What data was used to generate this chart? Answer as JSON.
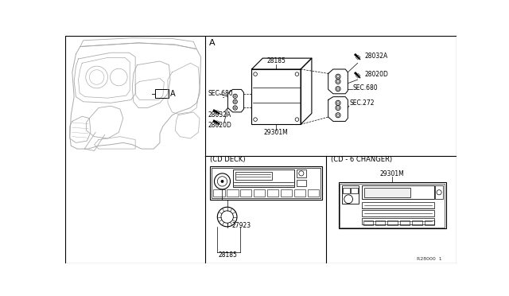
{
  "bg_color": "#ffffff",
  "line_color": "#000000",
  "gray_color": "#aaaaaa",
  "ref_code": "R28000  1",
  "fig_width": 6.4,
  "fig_height": 3.72,
  "dpi": 100,
  "labels": {
    "A_overview": "A",
    "A_callout": "A",
    "cd_deck": "(CD DECK)",
    "cd_changer": "(CD - 6 CHANGER)",
    "28185_top": "28185",
    "28032A_top": "28032A",
    "28020D_top": "28020D",
    "sec680_left": "SEC.680",
    "sec680_right": "SEC.680",
    "sec272": "SEC.272",
    "28032A_left": "28032A",
    "28020D_left": "28020D",
    "29301M_bottom": "29301M",
    "29301M_changer": "29301M",
    "27923": "27923",
    "28185_bottom": "28185"
  }
}
